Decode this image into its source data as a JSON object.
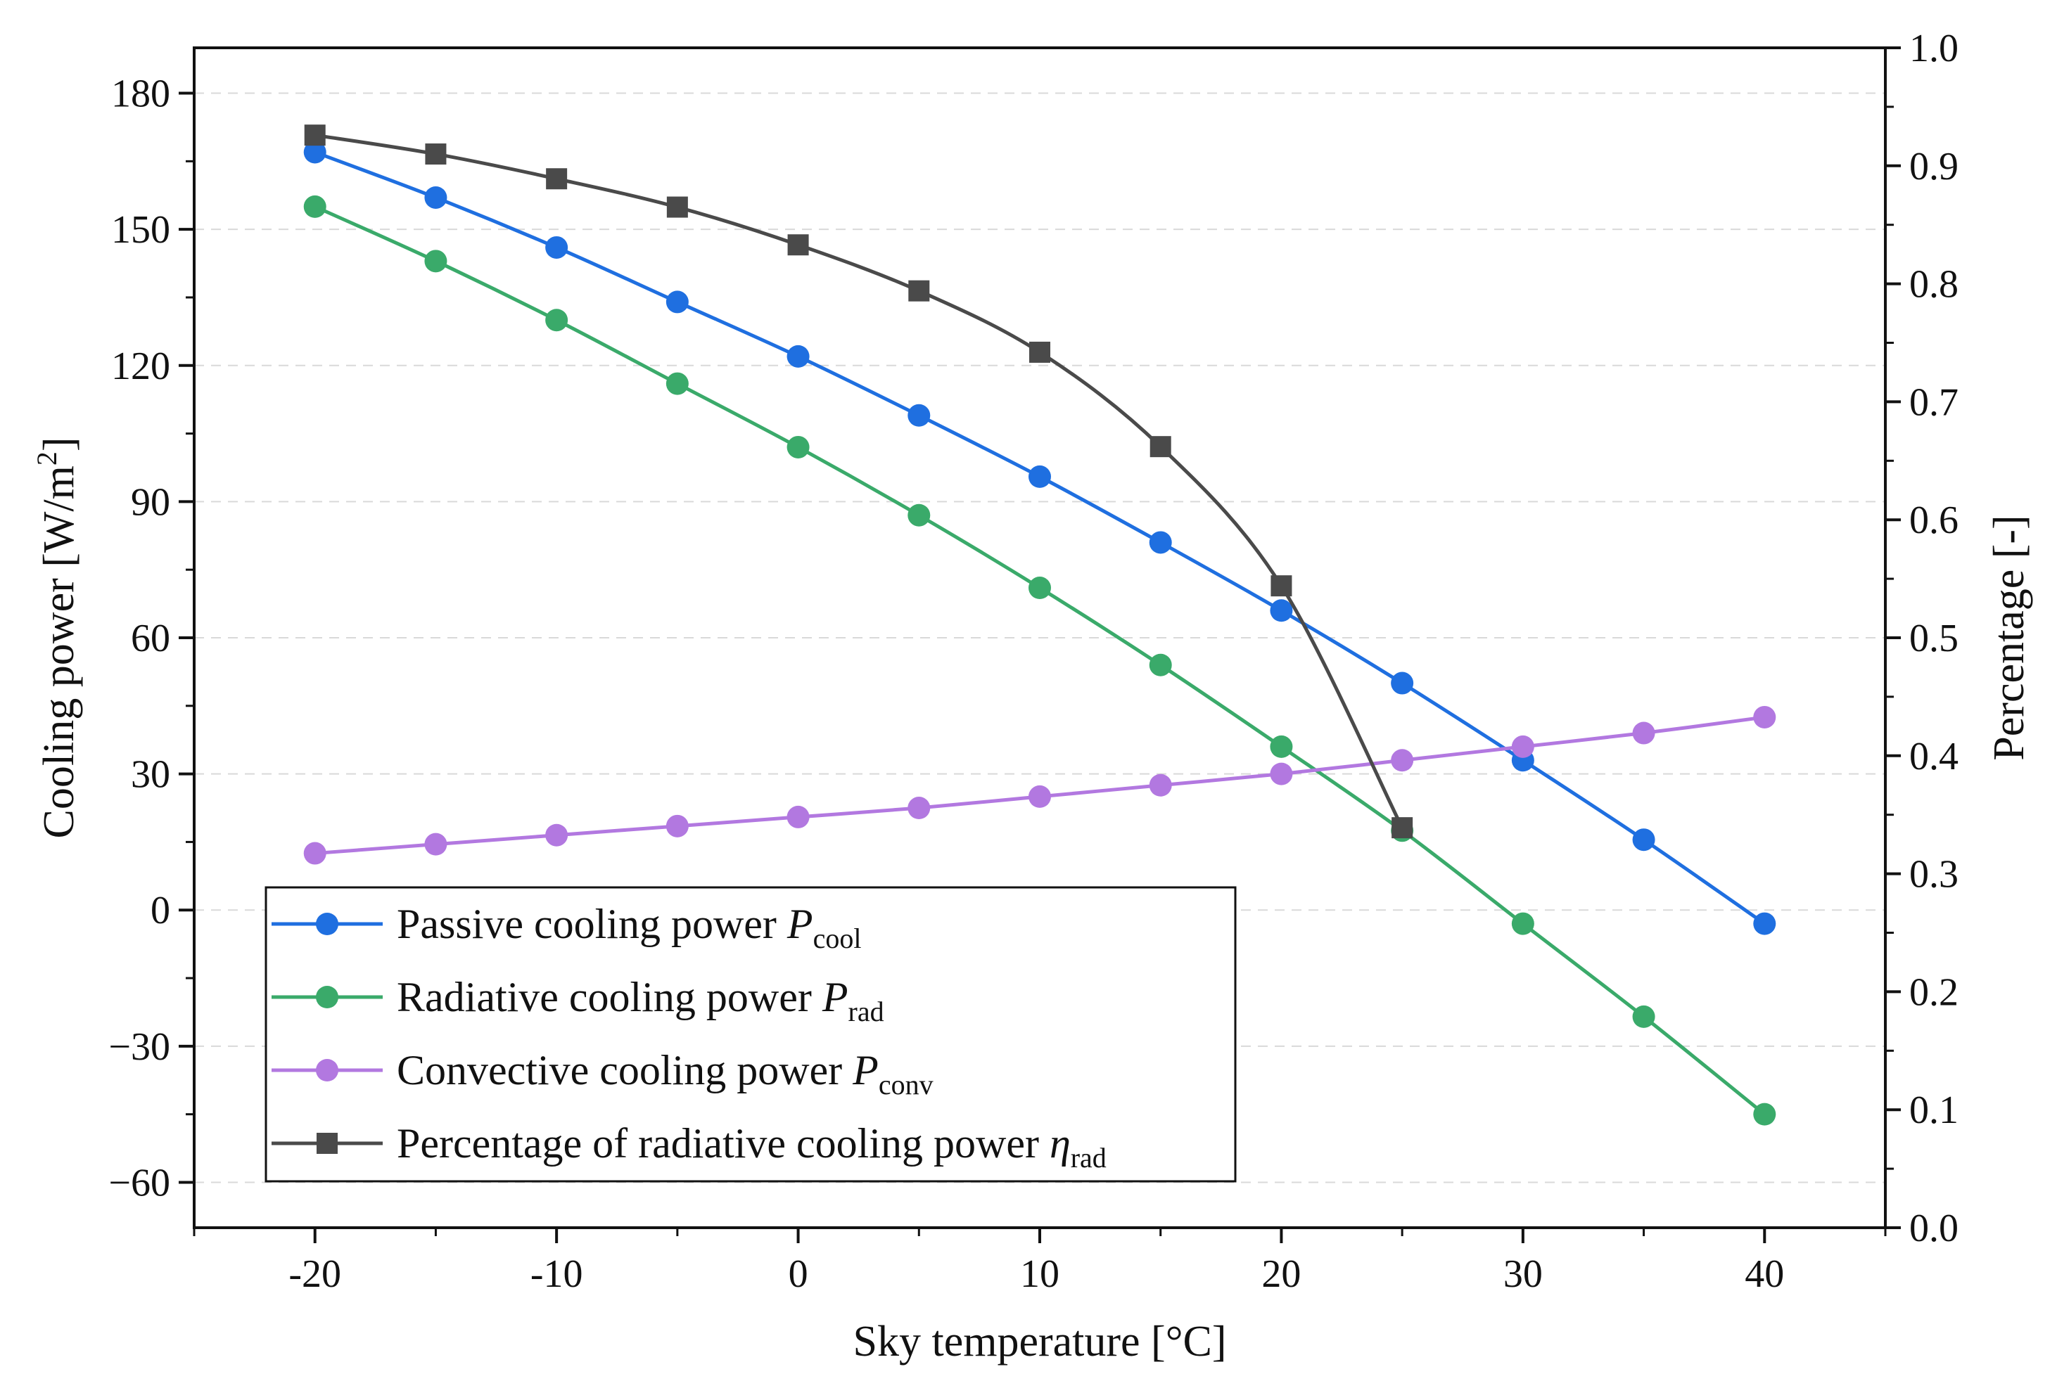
{
  "chart_data": {
    "type": "line",
    "xlabel": "Sky temperature [°C]",
    "ylabel": "Cooling power [W/m",
    "ylabel_sup": "2",
    "ylabel_end": "]",
    "y2label": "Percentage [-]",
    "xlim": [
      -25,
      45
    ],
    "ylim": [
      -70,
      190
    ],
    "y2lim": [
      0.0,
      1.0
    ],
    "x_ticks": [
      -20,
      -10,
      0,
      10,
      20,
      30,
      40
    ],
    "x_tick_labels": [
      "-20",
      "-10",
      "0",
      "10",
      "20",
      "30",
      "40"
    ],
    "y_ticks": [
      -60,
      -30,
      0,
      30,
      60,
      90,
      120,
      150,
      180
    ],
    "y_tick_labels": [
      "−60",
      "−30",
      "0",
      "30",
      "60",
      "90",
      "120",
      "150",
      "180"
    ],
    "y2_ticks": [
      0.0,
      0.1,
      0.2,
      0.3,
      0.4,
      0.5,
      0.6,
      0.7,
      0.8,
      0.9,
      1.0
    ],
    "y2_tick_labels": [
      "0.0",
      "0.1",
      "0.2",
      "0.3",
      "0.4",
      "0.5",
      "0.6",
      "0.7",
      "0.8",
      "0.9",
      "1.0"
    ],
    "grid": "horizontal dashed",
    "legend_position": "bottom-left",
    "series": [
      {
        "name": "Passive cooling power P_cool",
        "label_main": "Passive cooling power ",
        "label_var": "P",
        "label_sub": "cool",
        "axis": "left",
        "marker": "circle",
        "color": "#1f6fe0",
        "x": [
          -20,
          -15,
          -10,
          -5,
          0,
          5,
          10,
          15,
          20,
          25,
          30,
          35,
          40
        ],
        "values": [
          167,
          157,
          146,
          134,
          122,
          109,
          95.5,
          81,
          66,
          50,
          33,
          15.5,
          -3
        ]
      },
      {
        "name": "Radiative cooling power P_rad",
        "label_main": "Radiative cooling power ",
        "label_var": "P",
        "label_sub": "rad",
        "axis": "left",
        "marker": "circle",
        "color": "#3aaa6a",
        "x": [
          -20,
          -15,
          -10,
          -5,
          0,
          5,
          10,
          15,
          20,
          25,
          30,
          35,
          40
        ],
        "values": [
          155,
          143,
          130,
          116,
          102,
          87,
          71,
          54,
          36,
          17.5,
          -3,
          -23.5,
          -45
        ]
      },
      {
        "name": "Convective cooling power P_conv",
        "label_main": "Convective cooling power ",
        "label_var": "P",
        "label_sub": "conv",
        "axis": "left",
        "marker": "circle",
        "color": "#b278e0",
        "x": [
          -20,
          -15,
          -10,
          -5,
          0,
          5,
          10,
          15,
          20,
          25,
          30,
          35,
          40
        ],
        "values": [
          12.5,
          14.5,
          16.5,
          18.5,
          20.5,
          22.5,
          25,
          27.5,
          30,
          33,
          36,
          39,
          42.5
        ]
      },
      {
        "name": "Percentage of radiative cooling power eta_rad",
        "label_main": "Percentage of radiative cooling power ",
        "label_var": "η",
        "label_sub": "rad",
        "axis": "right",
        "marker": "square",
        "color": "#4a4a4a",
        "x": [
          -20,
          -15,
          -10,
          -5,
          0,
          5,
          10,
          15,
          20,
          25
        ],
        "values": [
          0.926,
          0.91,
          0.889,
          0.865,
          0.833,
          0.794,
          0.742,
          0.662,
          0.544,
          0.339
        ]
      }
    ]
  }
}
